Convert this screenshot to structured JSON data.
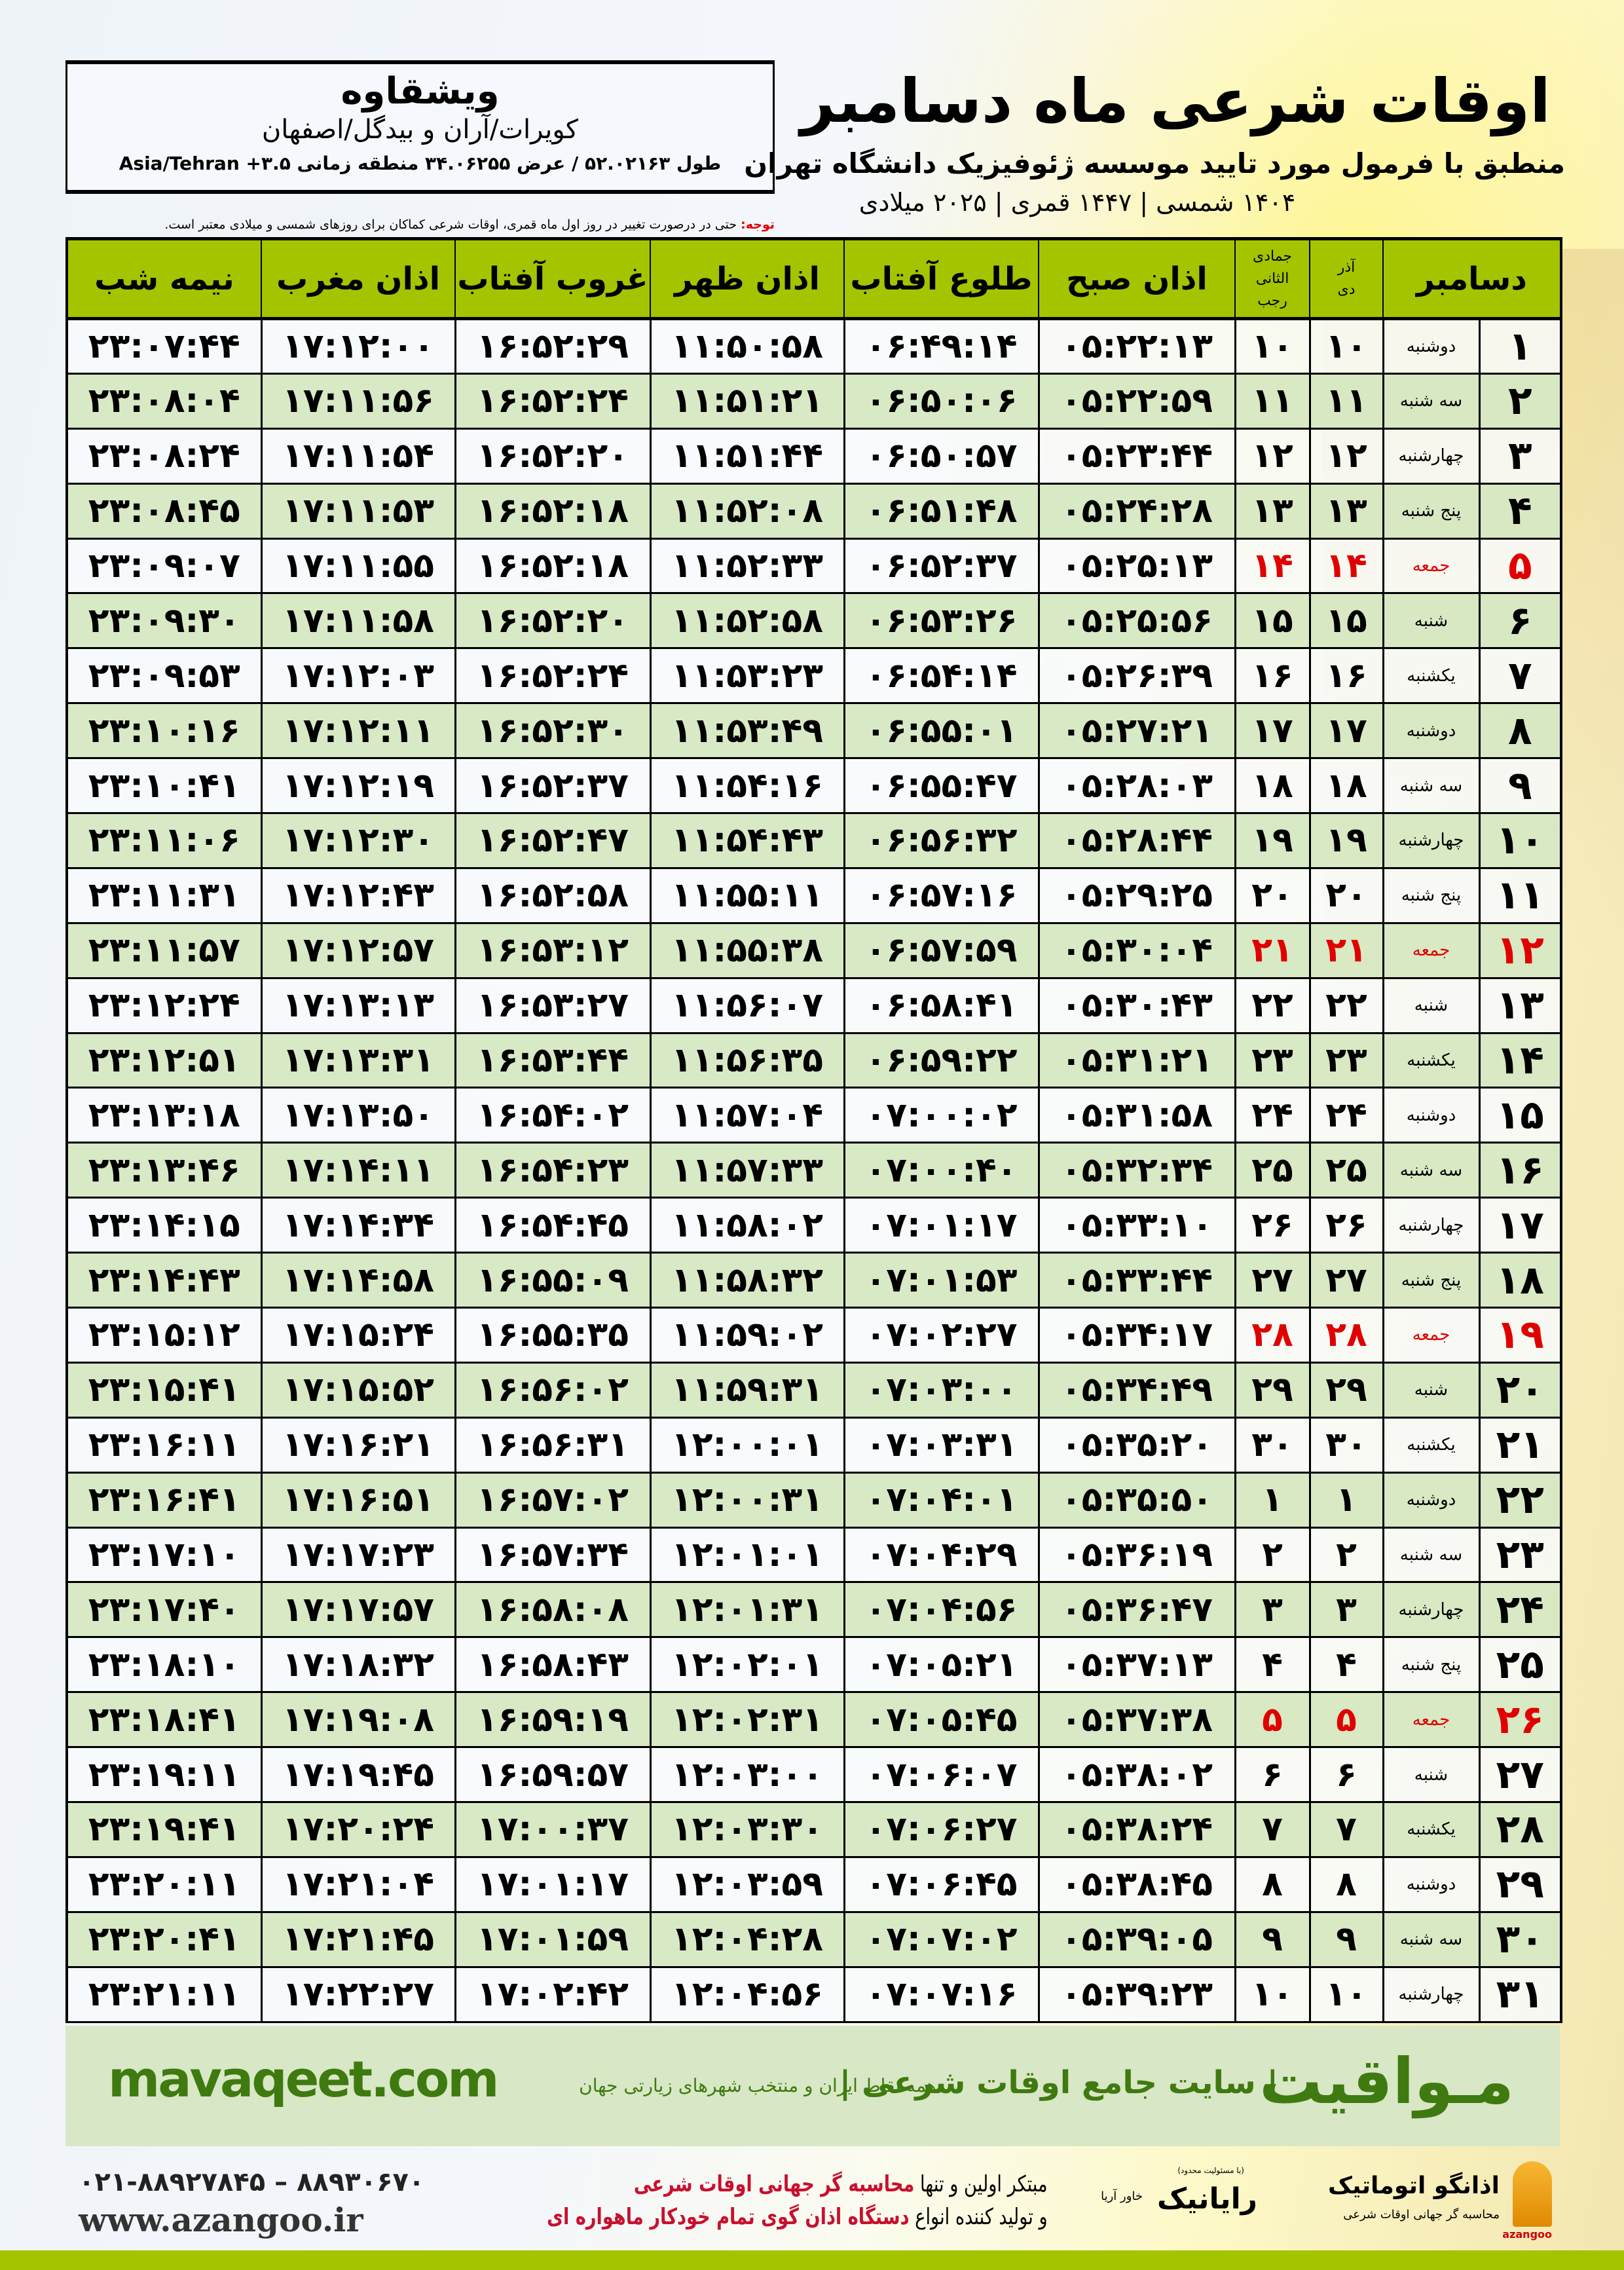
{
  "header": {
    "title": "اوقات شرعی ماه دسامبر",
    "subtitle": "منطبق با فرمول مورد تایید موسسه ژئوفیزیک دانشگاه تهران",
    "years": "۱۴۰۴ شمسی | ۱۴۴۷ قمری | ۲۰۲۵ میلادی"
  },
  "location": {
    "city": "ویشقاوه",
    "region": "کویرات/آران و بیدگل/اصفهان",
    "coords": "طول ۵۲.۰۲۱۶۳ / عرض ۳۴.۰۶۲۵۵ منطقه زمانی ۳.۵+ Asia/Tehran"
  },
  "note": {
    "label": "توجه:",
    "text": " حتی در درصورت تغییر در روز اول ماه قمری، اوقات شرعی کماکان برای روزهای شمسی و میلادی معتبر است."
  },
  "table": {
    "headers": {
      "month": "دسامبر",
      "shamsi_top": "آذر",
      "shamsi_bottom": "دی",
      "hijri_top": "جمادی الثانی",
      "hijri_bottom": "رجب",
      "fajr": "اذان صبح",
      "sunrise": "طلوع آفتاب",
      "dhuhr": "اذان ظهر",
      "sunset": "غروب آفتاب",
      "maghrib": "اذان مغرب",
      "midnight": "نیمه شب"
    },
    "holiday_color": "#e00000",
    "row_fields": [
      "day",
      "weekday",
      "shamsi",
      "hijri",
      "fajr",
      "sunrise",
      "dhuhr",
      "sunset",
      "maghrib",
      "midnight"
    ],
    "rows": [
      [
        "۱",
        "دوشنبه",
        "۱۰",
        "۱۰",
        "۰۵:۲۲:۱۳",
        "۰۶:۴۹:۱۴",
        "۱۱:۵۰:۵۸",
        "۱۶:۵۲:۲۹",
        "۱۷:۱۲:۰۰",
        "۲۳:۰۷:۴۴"
      ],
      [
        "۲",
        "سه شنبه",
        "۱۱",
        "۱۱",
        "۰۵:۲۲:۵۹",
        "۰۶:۵۰:۰۶",
        "۱۱:۵۱:۲۱",
        "۱۶:۵۲:۲۴",
        "۱۷:۱۱:۵۶",
        "۲۳:۰۸:۰۴"
      ],
      [
        "۳",
        "چهارشنبه",
        "۱۲",
        "۱۲",
        "۰۵:۲۳:۴۴",
        "۰۶:۵۰:۵۷",
        "۱۱:۵۱:۴۴",
        "۱۶:۵۲:۲۰",
        "۱۷:۱۱:۵۴",
        "۲۳:۰۸:۲۴"
      ],
      [
        "۴",
        "پنج شنبه",
        "۱۳",
        "۱۳",
        "۰۵:۲۴:۲۸",
        "۰۶:۵۱:۴۸",
        "۱۱:۵۲:۰۸",
        "۱۶:۵۲:۱۸",
        "۱۷:۱۱:۵۳",
        "۲۳:۰۸:۴۵"
      ],
      [
        "۵",
        "جمعه",
        "۱۴",
        "۱۴",
        "۰۵:۲۵:۱۳",
        "۰۶:۵۲:۳۷",
        "۱۱:۵۲:۳۳",
        "۱۶:۵۲:۱۸",
        "۱۷:۱۱:۵۵",
        "۲۳:۰۹:۰۷"
      ],
      [
        "۶",
        "شنبه",
        "۱۵",
        "۱۵",
        "۰۵:۲۵:۵۶",
        "۰۶:۵۳:۲۶",
        "۱۱:۵۲:۵۸",
        "۱۶:۵۲:۲۰",
        "۱۷:۱۱:۵۸",
        "۲۳:۰۹:۳۰"
      ],
      [
        "۷",
        "یکشنبه",
        "۱۶",
        "۱۶",
        "۰۵:۲۶:۳۹",
        "۰۶:۵۴:۱۴",
        "۱۱:۵۳:۲۳",
        "۱۶:۵۲:۲۴",
        "۱۷:۱۲:۰۳",
        "۲۳:۰۹:۵۳"
      ],
      [
        "۸",
        "دوشنبه",
        "۱۷",
        "۱۷",
        "۰۵:۲۷:۲۱",
        "۰۶:۵۵:۰۱",
        "۱۱:۵۳:۴۹",
        "۱۶:۵۲:۳۰",
        "۱۷:۱۲:۱۱",
        "۲۳:۱۰:۱۶"
      ],
      [
        "۹",
        "سه شنبه",
        "۱۸",
        "۱۸",
        "۰۵:۲۸:۰۳",
        "۰۶:۵۵:۴۷",
        "۱۱:۵۴:۱۶",
        "۱۶:۵۲:۳۷",
        "۱۷:۱۲:۱۹",
        "۲۳:۱۰:۴۱"
      ],
      [
        "۱۰",
        "چهارشنبه",
        "۱۹",
        "۱۹",
        "۰۵:۲۸:۴۴",
        "۰۶:۵۶:۳۲",
        "۱۱:۵۴:۴۳",
        "۱۶:۵۲:۴۷",
        "۱۷:۱۲:۳۰",
        "۲۳:۱۱:۰۶"
      ],
      [
        "۱۱",
        "پنج شنبه",
        "۲۰",
        "۲۰",
        "۰۵:۲۹:۲۵",
        "۰۶:۵۷:۱۶",
        "۱۱:۵۵:۱۱",
        "۱۶:۵۲:۵۸",
        "۱۷:۱۲:۴۳",
        "۲۳:۱۱:۳۱"
      ],
      [
        "۱۲",
        "جمعه",
        "۲۱",
        "۲۱",
        "۰۵:۳۰:۰۴",
        "۰۶:۵۷:۵۹",
        "۱۱:۵۵:۳۸",
        "۱۶:۵۳:۱۲",
        "۱۷:۱۲:۵۷",
        "۲۳:۱۱:۵۷"
      ],
      [
        "۱۳",
        "شنبه",
        "۲۲",
        "۲۲",
        "۰۵:۳۰:۴۳",
        "۰۶:۵۸:۴۱",
        "۱۱:۵۶:۰۷",
        "۱۶:۵۳:۲۷",
        "۱۷:۱۳:۱۳",
        "۲۳:۱۲:۲۴"
      ],
      [
        "۱۴",
        "یکشنبه",
        "۲۳",
        "۲۳",
        "۰۵:۳۱:۲۱",
        "۰۶:۵۹:۲۲",
        "۱۱:۵۶:۳۵",
        "۱۶:۵۳:۴۴",
        "۱۷:۱۳:۳۱",
        "۲۳:۱۲:۵۱"
      ],
      [
        "۱۵",
        "دوشنبه",
        "۲۴",
        "۲۴",
        "۰۵:۳۱:۵۸",
        "۰۷:۰۰:۰۲",
        "۱۱:۵۷:۰۴",
        "۱۶:۵۴:۰۲",
        "۱۷:۱۳:۵۰",
        "۲۳:۱۳:۱۸"
      ],
      [
        "۱۶",
        "سه شنبه",
        "۲۵",
        "۲۵",
        "۰۵:۳۲:۳۴",
        "۰۷:۰۰:۴۰",
        "۱۱:۵۷:۳۳",
        "۱۶:۵۴:۲۳",
        "۱۷:۱۴:۱۱",
        "۲۳:۱۳:۴۶"
      ],
      [
        "۱۷",
        "چهارشنبه",
        "۲۶",
        "۲۶",
        "۰۵:۳۳:۱۰",
        "۰۷:۰۱:۱۷",
        "۱۱:۵۸:۰۲",
        "۱۶:۵۴:۴۵",
        "۱۷:۱۴:۳۴",
        "۲۳:۱۴:۱۵"
      ],
      [
        "۱۸",
        "پنج شنبه",
        "۲۷",
        "۲۷",
        "۰۵:۳۳:۴۴",
        "۰۷:۰۱:۵۳",
        "۱۱:۵۸:۳۲",
        "۱۶:۵۵:۰۹",
        "۱۷:۱۴:۵۸",
        "۲۳:۱۴:۴۳"
      ],
      [
        "۱۹",
        "جمعه",
        "۲۸",
        "۲۸",
        "۰۵:۳۴:۱۷",
        "۰۷:۰۲:۲۷",
        "۱۱:۵۹:۰۲",
        "۱۶:۵۵:۳۵",
        "۱۷:۱۵:۲۴",
        "۲۳:۱۵:۱۲"
      ],
      [
        "۲۰",
        "شنبه",
        "۲۹",
        "۲۹",
        "۰۵:۳۴:۴۹",
        "۰۷:۰۳:۰۰",
        "۱۱:۵۹:۳۱",
        "۱۶:۵۶:۰۲",
        "۱۷:۱۵:۵۲",
        "۲۳:۱۵:۴۱"
      ],
      [
        "۲۱",
        "یکشنبه",
        "۳۰",
        "۳۰",
        "۰۵:۳۵:۲۰",
        "۰۷:۰۳:۳۱",
        "۱۲:۰۰:۰۱",
        "۱۶:۵۶:۳۱",
        "۱۷:۱۶:۲۱",
        "۲۳:۱۶:۱۱"
      ],
      [
        "۲۲",
        "دوشنبه",
        "۱",
        "۱",
        "۰۵:۳۵:۵۰",
        "۰۷:۰۴:۰۱",
        "۱۲:۰۰:۳۱",
        "۱۶:۵۷:۰۲",
        "۱۷:۱۶:۵۱",
        "۲۳:۱۶:۴۱"
      ],
      [
        "۲۳",
        "سه شنبه",
        "۲",
        "۲",
        "۰۵:۳۶:۱۹",
        "۰۷:۰۴:۲۹",
        "۱۲:۰۱:۰۱",
        "۱۶:۵۷:۳۴",
        "۱۷:۱۷:۲۳",
        "۲۳:۱۷:۱۰"
      ],
      [
        "۲۴",
        "چهارشنبه",
        "۳",
        "۳",
        "۰۵:۳۶:۴۷",
        "۰۷:۰۴:۵۶",
        "۱۲:۰۱:۳۱",
        "۱۶:۵۸:۰۸",
        "۱۷:۱۷:۵۷",
        "۲۳:۱۷:۴۰"
      ],
      [
        "۲۵",
        "پنج شنبه",
        "۴",
        "۴",
        "۰۵:۳۷:۱۳",
        "۰۷:۰۵:۲۱",
        "۱۲:۰۲:۰۱",
        "۱۶:۵۸:۴۳",
        "۱۷:۱۸:۳۲",
        "۲۳:۱۸:۱۰"
      ],
      [
        "۲۶",
        "جمعه",
        "۵",
        "۵",
        "۰۵:۳۷:۳۸",
        "۰۷:۰۵:۴۵",
        "۱۲:۰۲:۳۱",
        "۱۶:۵۹:۱۹",
        "۱۷:۱۹:۰۸",
        "۲۳:۱۸:۴۱"
      ],
      [
        "۲۷",
        "شنبه",
        "۶",
        "۶",
        "۰۵:۳۸:۰۲",
        "۰۷:۰۶:۰۷",
        "۱۲:۰۳:۰۰",
        "۱۶:۵۹:۵۷",
        "۱۷:۱۹:۴۵",
        "۲۳:۱۹:۱۱"
      ],
      [
        "۲۸",
        "یکشنبه",
        "۷",
        "۷",
        "۰۵:۳۸:۲۴",
        "۰۷:۰۶:۲۷",
        "۱۲:۰۳:۳۰",
        "۱۷:۰۰:۳۷",
        "۱۷:۲۰:۲۴",
        "۲۳:۱۹:۴۱"
      ],
      [
        "۲۹",
        "دوشنبه",
        "۸",
        "۸",
        "۰۵:۳۸:۴۵",
        "۰۷:۰۶:۴۵",
        "۱۲:۰۳:۵۹",
        "۱۷:۰۱:۱۷",
        "۱۷:۲۱:۰۴",
        "۲۳:۲۰:۱۱"
      ],
      [
        "۳۰",
        "سه شنبه",
        "۹",
        "۹",
        "۰۵:۳۹:۰۵",
        "۰۷:۰۷:۰۲",
        "۱۲:۰۴:۲۸",
        "۱۷:۰۱:۵۹",
        "۱۷:۲۱:۴۵",
        "۲۳:۲۰:۴۱"
      ],
      [
        "۳۱",
        "چهارشنبه",
        "۱۰",
        "۱۰",
        "۰۵:۳۹:۲۳",
        "۰۷:۰۷:۱۶",
        "۱۲:۰۴:۵۶",
        "۱۷:۰۲:۴۲",
        "۱۷:۲۲:۲۷",
        "۲۳:۲۱:۱۱"
      ]
    ]
  },
  "footer_band": {
    "brand": "مـواقیت",
    "slogan": "| سایت جامع اوقات شرعی |",
    "sub": "همه نقاط ایران و منتخب شهرهای زیارتی جهان",
    "url": "mavaqeet.com"
  },
  "bottom": {
    "logo1_name": "اذانگو اتوماتیک",
    "logo1_sub": "محاسبه گر جهانی اوقات شرعی",
    "logo1_latin": "azangoo",
    "logo2_name": "رایانیک",
    "logo2_side": "خاور آریا",
    "logo2_legal": "(با مسئولیت محدود)",
    "promo1_a": "مبتکر اولین و تنها ",
    "promo1_b": "محاسبه گر جهانی اوقات شرعی",
    "promo2_a": "و تولید کننده انواع ",
    "promo2_b": "دستگاه اذان گوی تمام خودکار ماهواره ای",
    "phone": "۰۲۱-۸۸۹۲۷۸۴۵ – ۸۸۹۳۰۶۷۰",
    "website": "www.azangoo.ir"
  }
}
